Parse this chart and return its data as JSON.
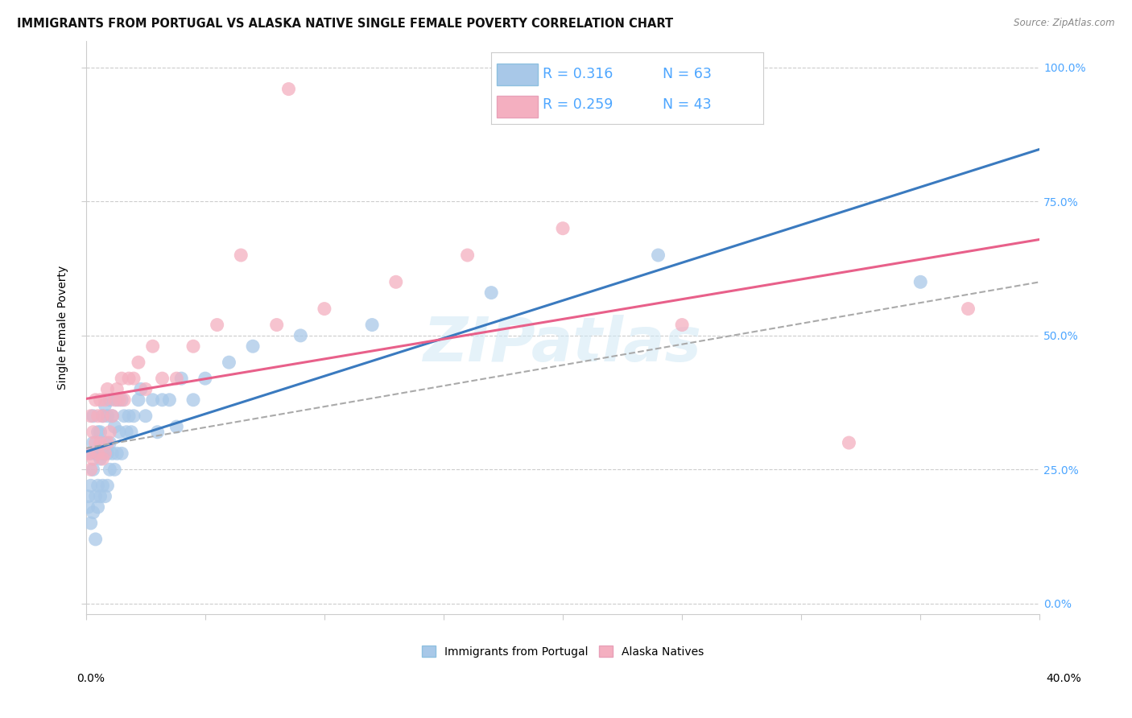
{
  "title": "IMMIGRANTS FROM PORTUGAL VS ALASKA NATIVE SINGLE FEMALE POVERTY CORRELATION CHART",
  "source": "Source: ZipAtlas.com",
  "ylabel": "Single Female Poverty",
  "ytick_vals": [
    0.0,
    0.25,
    0.5,
    0.75,
    1.0
  ],
  "ytick_labels": [
    "0.0%",
    "25.0%",
    "50.0%",
    "75.0%",
    "100.0%"
  ],
  "xlim": [
    0.0,
    0.4
  ],
  "ylim": [
    -0.02,
    1.05
  ],
  "legend_label1": "Immigrants from Portugal",
  "legend_label2": "Alaska Natives",
  "R1": 0.316,
  "N1": 63,
  "R2": 0.259,
  "N2": 43,
  "color_blue": "#a8c8e8",
  "color_pink": "#f4afc0",
  "line_color_blue": "#3a7abf",
  "line_color_pink": "#e8608a",
  "line_color_dashed": "#aaaaaa",
  "background_color": "#ffffff",
  "grid_color": "#cccccc",
  "right_tick_color": "#4da6ff",
  "watermark": "ZIPatlas",
  "title_fontsize": 10.5,
  "axis_label_fontsize": 10,
  "tick_fontsize": 10,
  "legend_fontsize": 13,
  "blue_x": [
    0.001,
    0.001,
    0.002,
    0.002,
    0.002,
    0.003,
    0.003,
    0.003,
    0.003,
    0.004,
    0.004,
    0.004,
    0.005,
    0.005,
    0.005,
    0.005,
    0.006,
    0.006,
    0.006,
    0.007,
    0.007,
    0.007,
    0.008,
    0.008,
    0.008,
    0.009,
    0.009,
    0.009,
    0.01,
    0.01,
    0.01,
    0.011,
    0.011,
    0.012,
    0.012,
    0.013,
    0.013,
    0.014,
    0.015,
    0.015,
    0.016,
    0.017,
    0.018,
    0.019,
    0.02,
    0.022,
    0.023,
    0.025,
    0.028,
    0.03,
    0.032,
    0.035,
    0.038,
    0.04,
    0.045,
    0.05,
    0.06,
    0.07,
    0.09,
    0.12,
    0.17,
    0.24,
    0.35
  ],
  "blue_y": [
    0.18,
    0.2,
    0.15,
    0.22,
    0.28,
    0.17,
    0.25,
    0.3,
    0.35,
    0.12,
    0.2,
    0.28,
    0.18,
    0.22,
    0.28,
    0.32,
    0.2,
    0.27,
    0.32,
    0.22,
    0.28,
    0.35,
    0.2,
    0.3,
    0.37,
    0.22,
    0.28,
    0.35,
    0.25,
    0.3,
    0.38,
    0.28,
    0.35,
    0.25,
    0.33,
    0.28,
    0.38,
    0.32,
    0.28,
    0.38,
    0.35,
    0.32,
    0.35,
    0.32,
    0.35,
    0.38,
    0.4,
    0.35,
    0.38,
    0.32,
    0.38,
    0.38,
    0.33,
    0.42,
    0.38,
    0.42,
    0.45,
    0.48,
    0.5,
    0.52,
    0.58,
    0.65,
    0.6
  ],
  "pink_x": [
    0.001,
    0.002,
    0.002,
    0.003,
    0.003,
    0.004,
    0.004,
    0.005,
    0.005,
    0.006,
    0.006,
    0.007,
    0.007,
    0.008,
    0.008,
    0.009,
    0.009,
    0.01,
    0.011,
    0.012,
    0.013,
    0.014,
    0.015,
    0.016,
    0.018,
    0.02,
    0.022,
    0.025,
    0.028,
    0.032,
    0.038,
    0.045,
    0.055,
    0.065,
    0.08,
    0.1,
    0.13,
    0.16,
    0.2,
    0.25,
    0.32,
    0.37,
    0.085
  ],
  "pink_y": [
    0.28,
    0.25,
    0.35,
    0.27,
    0.32,
    0.3,
    0.38,
    0.28,
    0.35,
    0.3,
    0.38,
    0.27,
    0.35,
    0.28,
    0.38,
    0.3,
    0.4,
    0.32,
    0.35,
    0.38,
    0.4,
    0.38,
    0.42,
    0.38,
    0.42,
    0.42,
    0.45,
    0.4,
    0.48,
    0.42,
    0.42,
    0.48,
    0.52,
    0.65,
    0.52,
    0.55,
    0.6,
    0.65,
    0.7,
    0.52,
    0.3,
    0.55,
    0.96
  ]
}
